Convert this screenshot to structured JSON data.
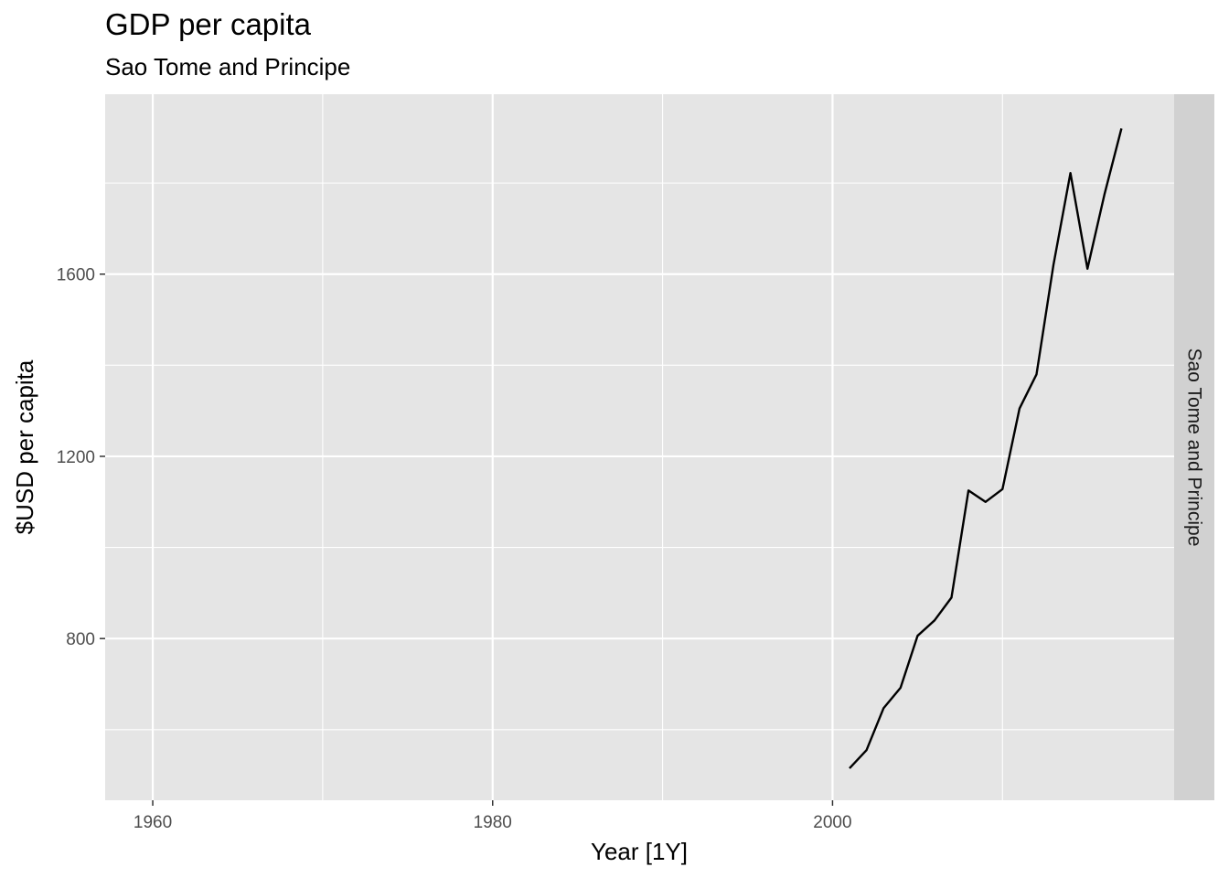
{
  "chart_data": {
    "type": "line",
    "title": "GDP per capita",
    "subtitle": "Sao Tome and Principe",
    "xlabel": "Year [1Y]",
    "ylabel": "$USD per capita",
    "facet_label": "Sao Tome and Principe",
    "xlim": [
      1957.2,
      2020.1
    ],
    "ylim": [
      445,
      1995
    ],
    "x_ticks": [
      1960,
      1980,
      2000
    ],
    "x_minor_ticks": [
      1970,
      1990,
      2010
    ],
    "y_ticks": [
      800,
      1200,
      1600
    ],
    "y_minor_ticks": [
      600,
      1000,
      1400,
      1800
    ],
    "grid": true,
    "colors": {
      "panel": "#e5e5e5",
      "grid": "#ffffff",
      "strip": "#d1d1d1",
      "line": "#000000"
    },
    "series": [
      {
        "x": [
          2001,
          2002,
          2003,
          2004,
          2005,
          2006,
          2007,
          2008,
          2009,
          2010,
          2011,
          2012,
          2013,
          2014,
          2015,
          2016,
          2017
        ],
        "y": [
          515,
          555,
          647,
          692,
          806,
          840,
          890,
          1125,
          1100,
          1128,
          1305,
          1380,
          1620,
          1822,
          1612,
          1775,
          1920
        ]
      }
    ]
  }
}
